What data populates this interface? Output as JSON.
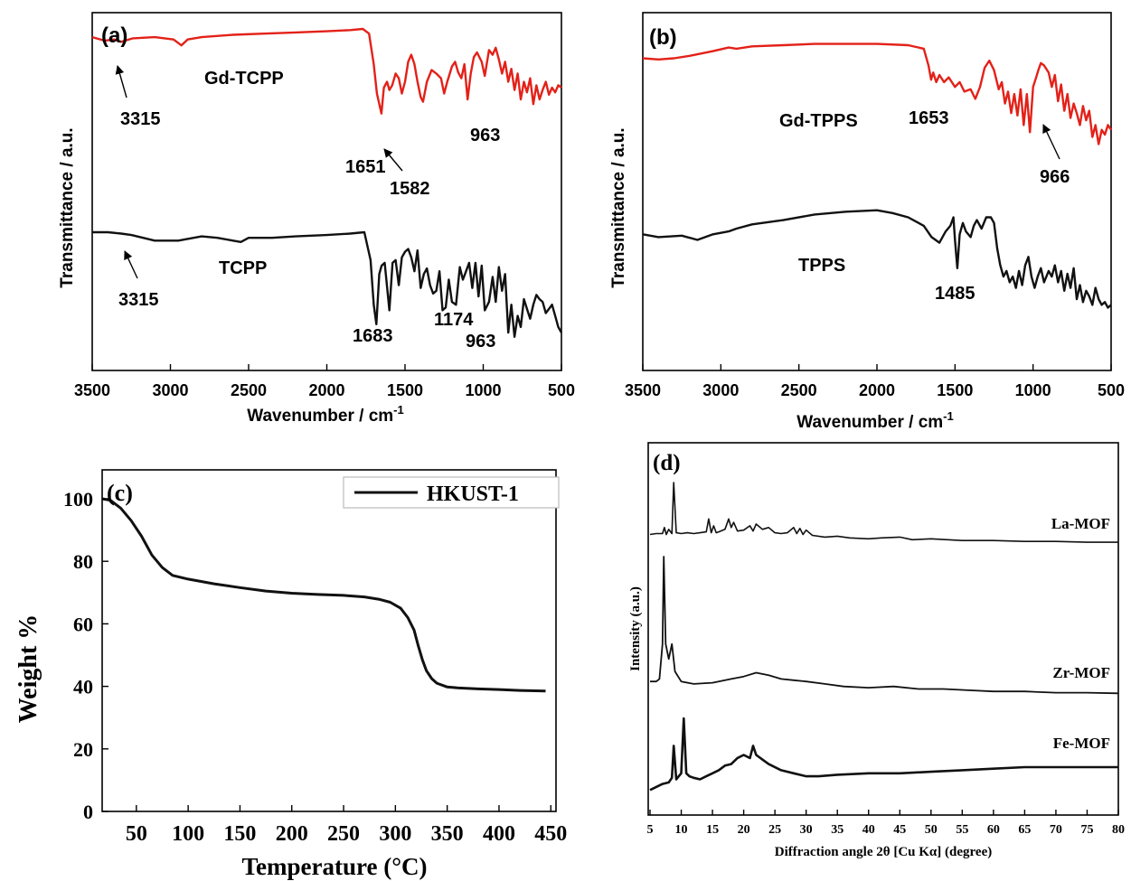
{
  "chart_data": [
    {
      "panel": "(a)",
      "type": "line",
      "xlabel": "Wavenumber / cm",
      "xlabel_sup": "-1",
      "ylabel": "Transmittance / a.u.",
      "xlim": [
        3500,
        500
      ],
      "x_reversed": true,
      "xticks": [
        "3500",
        "3000",
        "2500",
        "2000",
        "1500",
        "1000",
        "500"
      ],
      "series": [
        {
          "name": "Gd-TCPP",
          "color": "#e32119",
          "x": [
            3500,
            3420,
            3360,
            3315,
            3240,
            3100,
            2980,
            2930,
            2890,
            2800,
            2600,
            2400,
            2200,
            2000,
            1850,
            1770,
            1730,
            1700,
            1680,
            1651,
            1635,
            1615,
            1600,
            1582,
            1560,
            1540,
            1520,
            1500,
            1480,
            1460,
            1440,
            1420,
            1400,
            1385,
            1360,
            1330,
            1300,
            1270,
            1250,
            1230,
            1200,
            1180,
            1160,
            1140,
            1120,
            1100,
            1080,
            1060,
            1040,
            1010,
            990,
            963,
            940,
            920,
            900,
            880,
            860,
            840,
            820,
            800,
            780,
            760,
            740,
            720,
            700,
            680,
            660,
            640,
            620,
            600,
            580,
            560,
            540,
            520,
            500
          ],
          "y": [
            93,
            90,
            91,
            89,
            92,
            93,
            91,
            86,
            91,
            93,
            95,
            96,
            97,
            98,
            99,
            100,
            96,
            70,
            45,
            28,
            50,
            55,
            48,
            52,
            62,
            58,
            45,
            55,
            72,
            78,
            70,
            55,
            42,
            38,
            55,
            65,
            62,
            58,
            45,
            55,
            68,
            72,
            63,
            58,
            70,
            40,
            62,
            76,
            80,
            72,
            60,
            82,
            78,
            84,
            74,
            62,
            72,
            55,
            66,
            48,
            62,
            40,
            55,
            46,
            58,
            36,
            52,
            40,
            48,
            55,
            44,
            50,
            46,
            52,
            50
          ]
        },
        {
          "name": "TCPP",
          "color": "#111111",
          "x": [
            3500,
            3400,
            3315,
            3250,
            3100,
            2950,
            2800,
            2700,
            2600,
            2550,
            2500,
            2350,
            2200,
            2000,
            1850,
            1760,
            1720,
            1700,
            1683,
            1665,
            1650,
            1630,
            1600,
            1580,
            1560,
            1540,
            1520,
            1500,
            1480,
            1460,
            1440,
            1420,
            1400,
            1380,
            1360,
            1340,
            1320,
            1300,
            1280,
            1260,
            1240,
            1220,
            1200,
            1174,
            1150,
            1130,
            1110,
            1090,
            1070,
            1050,
            1030,
            1010,
            990,
            963,
            940,
            920,
            900,
            880,
            860,
            840,
            820,
            800,
            780,
            760,
            740,
            720,
            700,
            680,
            660,
            640,
            620,
            600,
            580,
            560,
            540,
            520,
            500
          ],
          "y": [
            70,
            70,
            69,
            68,
            64,
            64,
            67,
            66,
            64,
            63,
            66,
            66,
            67,
            68,
            69,
            70,
            50,
            18,
            4,
            40,
            46,
            48,
            14,
            48,
            50,
            32,
            52,
            56,
            58,
            52,
            42,
            57,
            30,
            40,
            44,
            32,
            26,
            28,
            42,
            14,
            16,
            36,
            20,
            18,
            45,
            36,
            42,
            48,
            30,
            48,
            24,
            46,
            14,
            20,
            38,
            20,
            45,
            28,
            40,
            -2,
            18,
            -5,
            10,
            2,
            22,
            15,
            8,
            18,
            25,
            22,
            20,
            12,
            15,
            18,
            10,
            2,
            -2
          ]
        }
      ],
      "annotations": [
        "3315",
        "Gd-TCPP",
        "1651",
        "1582",
        "963",
        "3315",
        "TCPP",
        "1683",
        "1174",
        "963"
      ]
    },
    {
      "panel": "(b)",
      "type": "line",
      "xlabel": "Wavenumber / cm",
      "xlabel_sup": "-1",
      "ylabel": "Transmittance / a.u.",
      "xlim": [
        3500,
        500
      ],
      "x_reversed": true,
      "xticks": [
        "3500",
        "3000",
        "2500",
        "2000",
        "1500",
        "1000",
        "500"
      ],
      "series": [
        {
          "name": "Gd-TPPS",
          "color": "#e32119",
          "x": [
            3500,
            3400,
            3300,
            3200,
            3050,
            2950,
            2900,
            2800,
            2600,
            2400,
            2200,
            2000,
            1800,
            1700,
            1670,
            1653,
            1640,
            1620,
            1600,
            1570,
            1540,
            1500,
            1470,
            1440,
            1400,
            1370,
            1340,
            1310,
            1280,
            1250,
            1220,
            1200,
            1180,
            1160,
            1140,
            1120,
            1100,
            1080,
            1060,
            1040,
            1020,
            1000,
            980,
            966,
            950,
            930,
            900,
            880,
            860,
            840,
            820,
            800,
            780,
            760,
            740,
            720,
            700,
            680,
            660,
            640,
            620,
            600,
            580,
            560,
            540,
            520,
            500
          ],
          "y": [
            86,
            85,
            86,
            88,
            92,
            95,
            94,
            96,
            97,
            98,
            98,
            98,
            97,
            94,
            80,
            68,
            74,
            66,
            72,
            66,
            70,
            62,
            66,
            58,
            60,
            52,
            62,
            78,
            84,
            76,
            60,
            66,
            48,
            58,
            40,
            56,
            38,
            60,
            30,
            56,
            24,
            62,
            70,
            76,
            82,
            80,
            74,
            62,
            72,
            50,
            64,
            42,
            56,
            36,
            48,
            40,
            30,
            46,
            34,
            42,
            20,
            30,
            14,
            26,
            22,
            30,
            26
          ]
        },
        {
          "name": "TPPS",
          "color": "#111111",
          "x": [
            3500,
            3400,
            3250,
            3150,
            3050,
            2950,
            2900,
            2800,
            2600,
            2400,
            2200,
            2000,
            1900,
            1800,
            1700,
            1650,
            1600,
            1560,
            1530,
            1510,
            1500,
            1485,
            1470,
            1450,
            1430,
            1400,
            1380,
            1360,
            1330,
            1300,
            1270,
            1250,
            1230,
            1210,
            1190,
            1170,
            1150,
            1130,
            1110,
            1090,
            1070,
            1050,
            1030,
            1010,
            990,
            970,
            950,
            930,
            900,
            880,
            860,
            840,
            820,
            800,
            780,
            760,
            740,
            720,
            700,
            680,
            660,
            640,
            620,
            600,
            580,
            560,
            540,
            520,
            500
          ],
          "y": [
            60,
            58,
            59,
            56,
            60,
            62,
            64,
            67,
            70,
            74,
            76,
            77,
            75,
            72,
            66,
            58,
            54,
            62,
            66,
            72,
            56,
            36,
            60,
            68,
            62,
            58,
            66,
            70,
            64,
            72,
            72,
            68,
            50,
            38,
            30,
            34,
            26,
            30,
            22,
            34,
            24,
            38,
            44,
            30,
            22,
            30,
            36,
            26,
            34,
            30,
            38,
            26,
            34,
            20,
            32,
            22,
            36,
            14,
            24,
            12,
            20,
            16,
            10,
            22,
            14,
            10,
            12,
            8,
            10
          ]
        }
      ],
      "annotations": [
        "Gd-TPPS",
        "1653",
        "966",
        "TPPS",
        "1485"
      ]
    },
    {
      "panel": "(c)",
      "type": "line",
      "xlabel": "Temperature  (°C)",
      "ylabel": "Weight %",
      "xlim": [
        17,
        455
      ],
      "ylim": [
        0,
        110
      ],
      "xticks": [
        50,
        100,
        150,
        200,
        250,
        300,
        350,
        400,
        450
      ],
      "yticks": [
        0,
        20,
        40,
        60,
        80,
        100
      ],
      "legend": "top-right",
      "series": [
        {
          "name": "HKUST-1",
          "color": "#111111",
          "x": [
            17,
            25,
            35,
            45,
            55,
            65,
            75,
            85,
            100,
            125,
            150,
            175,
            200,
            225,
            250,
            270,
            285,
            295,
            305,
            312,
            318,
            322,
            326,
            330,
            335,
            340,
            350,
            360,
            380,
            400,
            420,
            445
          ],
          "y": [
            100,
            99.5,
            97,
            93,
            88,
            82,
            78,
            75.5,
            74.3,
            72.8,
            71.6,
            70.5,
            69.8,
            69.4,
            69.1,
            68.6,
            67.8,
            66.9,
            65,
            62,
            58,
            53,
            48.5,
            45,
            42.5,
            41,
            39.8,
            39.5,
            39.2,
            39,
            38.7,
            38.5
          ]
        }
      ]
    },
    {
      "panel": "(d)",
      "type": "line",
      "xlabel": "Diffraction angle 2θ [Cu Kα] (degree)",
      "ylabel": "Intensity (a.u.)",
      "xlim": [
        5,
        80
      ],
      "xticks": [
        5,
        10,
        15,
        20,
        25,
        30,
        35,
        40,
        45,
        50,
        55,
        60,
        65,
        70,
        75,
        80
      ],
      "series": [
        {
          "name": "La-MOF",
          "color": "#111111",
          "x": [
            5,
            6,
            7,
            7.3,
            7.6,
            8,
            8.5,
            8.8,
            9.2,
            10,
            11,
            12,
            13,
            14,
            14.4,
            14.8,
            15.2,
            15.6,
            16,
            17,
            17.6,
            18,
            18.4,
            19,
            20,
            21,
            21.5,
            22,
            23,
            24,
            25,
            26,
            27,
            28,
            28.5,
            29,
            29.5,
            30,
            31,
            33,
            35,
            37,
            40,
            42,
            45,
            47,
            50,
            55,
            60,
            65,
            70,
            75,
            80
          ],
          "y": [
            12,
            13,
            13,
            20,
            12,
            18,
            13,
            72,
            14,
            13,
            14,
            13,
            14,
            15,
            30,
            14,
            22,
            14,
            15,
            18,
            30,
            20,
            26,
            16,
            17,
            22,
            16,
            24,
            18,
            20,
            14,
            13,
            14,
            20,
            13,
            19,
            12,
            17,
            11,
            9,
            10,
            8,
            7,
            8,
            9,
            6,
            7,
            5,
            5,
            4,
            4,
            3,
            3
          ]
        },
        {
          "name": "Zr-MOF",
          "color": "#111111",
          "x": [
            5,
            6,
            6.5,
            7,
            7.2,
            7.5,
            8,
            8.5,
            9,
            10,
            12,
            15,
            18,
            20,
            22,
            24,
            26,
            28,
            30,
            33,
            36,
            40,
            44,
            48,
            52,
            56,
            60,
            65,
            70,
            75,
            80
          ],
          "y": [
            10,
            10,
            12,
            40,
            110,
            40,
            28,
            40,
            18,
            10,
            8,
            9,
            12,
            14,
            17,
            15,
            12,
            11,
            10,
            8,
            6,
            5,
            6,
            4,
            4,
            3,
            2,
            2,
            1,
            1,
            0.5
          ]
        },
        {
          "name": "Fe-MOF",
          "color": "#111111",
          "x": [
            5,
            6,
            7,
            8,
            8.5,
            8.8,
            9.2,
            9.6,
            10,
            10.4,
            10.8,
            11.3,
            12,
            13,
            14,
            15,
            16,
            17,
            18,
            19,
            20,
            21,
            21.5,
            22,
            23,
            24,
            26,
            28,
            30,
            32,
            35,
            40,
            45,
            50,
            55,
            60,
            65,
            70,
            75,
            80
          ],
          "y": [
            1,
            3,
            5,
            6,
            9,
            30,
            8,
            10,
            12,
            48,
            12,
            10,
            9,
            8,
            10,
            12,
            14,
            17,
            18,
            22,
            24,
            22,
            30,
            24,
            21,
            18,
            14,
            12,
            10,
            10,
            11,
            12,
            12,
            13,
            14,
            15,
            16,
            16,
            16,
            16
          ]
        }
      ]
    }
  ]
}
